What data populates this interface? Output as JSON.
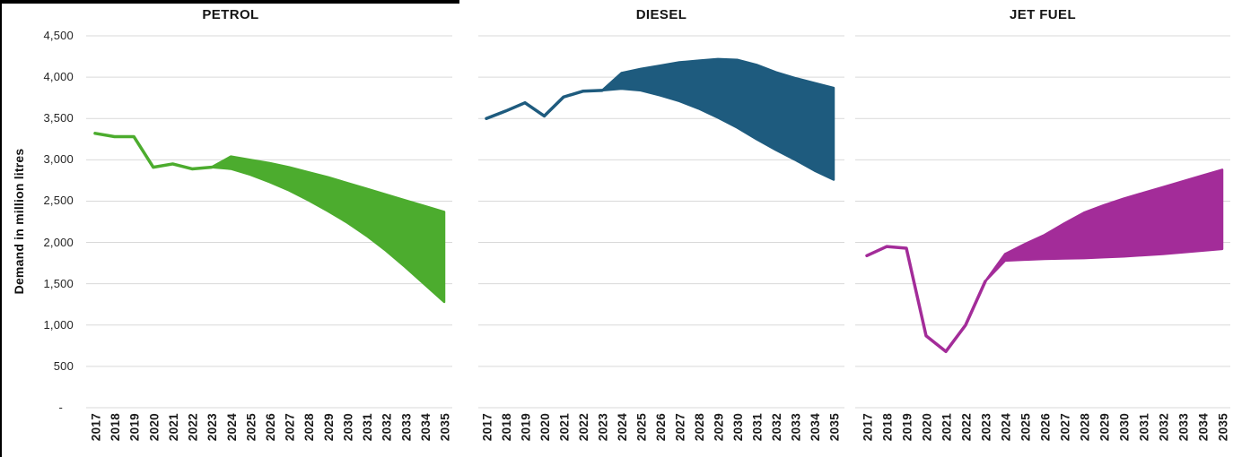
{
  "page": {
    "background": "#ffffff",
    "grid_color": "#d9d9d9",
    "text_color": "#1a1a1a"
  },
  "y_axis": {
    "label": "Demand in million litres",
    "ticks": [
      "4,500",
      "4,000",
      "3,500",
      "3,000",
      "2,500",
      "2,000",
      "1,500",
      "1,000",
      "500",
      "-"
    ],
    "tick_values": [
      4500,
      4000,
      3500,
      3000,
      2500,
      2000,
      1500,
      1000,
      500,
      0
    ],
    "min": 0,
    "max": 4500,
    "step": 500
  },
  "x_axis": {
    "years": [
      2017,
      2018,
      2019,
      2020,
      2021,
      2022,
      2023,
      2024,
      2025,
      2026,
      2027,
      2028,
      2029,
      2030,
      2031,
      2032,
      2033,
      2034,
      2035
    ]
  },
  "chart_data": [
    {
      "type": "area",
      "title": "PETROL",
      "color": "#4CAC2E",
      "xlabel": "",
      "ylabel": "Demand in million litres",
      "ylim": [
        0,
        4500
      ],
      "grid": true,
      "history_years": [
        2017,
        2018,
        2019,
        2020,
        2021,
        2022,
        2023
      ],
      "history": [
        3320,
        3280,
        3280,
        2910,
        2950,
        2890,
        2910
      ],
      "band_years": [
        2023,
        2024,
        2025,
        2026,
        2027,
        2028,
        2029,
        2030,
        2031,
        2032,
        2033,
        2034,
        2035
      ],
      "band_upper": [
        2910,
        3040,
        3000,
        2960,
        2910,
        2850,
        2790,
        2720,
        2650,
        2580,
        2510,
        2440,
        2370
      ],
      "band_lower": [
        2910,
        2890,
        2820,
        2730,
        2630,
        2510,
        2380,
        2240,
        2080,
        1900,
        1700,
        1490,
        1280
      ]
    },
    {
      "type": "area",
      "title": "DIESEL",
      "color": "#1E5B7E",
      "xlabel": "",
      "ylabel": "Demand in million litres",
      "ylim": [
        0,
        4500
      ],
      "grid": true,
      "history_years": [
        2017,
        2018,
        2019,
        2020,
        2021,
        2022,
        2023
      ],
      "history": [
        3500,
        3590,
        3690,
        3530,
        3760,
        3830,
        3840
      ],
      "band_years": [
        2023,
        2024,
        2025,
        2026,
        2027,
        2028,
        2029,
        2030,
        2031,
        2032,
        2033,
        2034,
        2035
      ],
      "band_upper": [
        3840,
        4050,
        4100,
        4140,
        4180,
        4200,
        4220,
        4210,
        4150,
        4060,
        3990,
        3930,
        3870
      ],
      "band_lower": [
        3840,
        3860,
        3840,
        3780,
        3710,
        3620,
        3510,
        3390,
        3250,
        3120,
        3000,
        2870,
        2760
      ]
    },
    {
      "type": "area",
      "title": "JET FUEL",
      "color": "#A32C99",
      "xlabel": "",
      "ylabel": "Demand in million litres",
      "ylim": [
        0,
        4500
      ],
      "grid": true,
      "history_years": [
        2017,
        2018,
        2019,
        2020,
        2021,
        2022,
        2023
      ],
      "history": [
        1840,
        1950,
        1930,
        870,
        680,
        1000,
        1530
      ],
      "band_years": [
        2023,
        2024,
        2025,
        2026,
        2027,
        2028,
        2029,
        2030,
        2031,
        2032,
        2033,
        2034,
        2035
      ],
      "band_upper": [
        1530,
        1860,
        1980,
        2090,
        2230,
        2360,
        2450,
        2530,
        2600,
        2670,
        2740,
        2810,
        2880
      ],
      "band_lower": [
        1530,
        1780,
        1790,
        1800,
        1805,
        1810,
        1820,
        1830,
        1845,
        1860,
        1880,
        1900,
        1920
      ]
    }
  ]
}
